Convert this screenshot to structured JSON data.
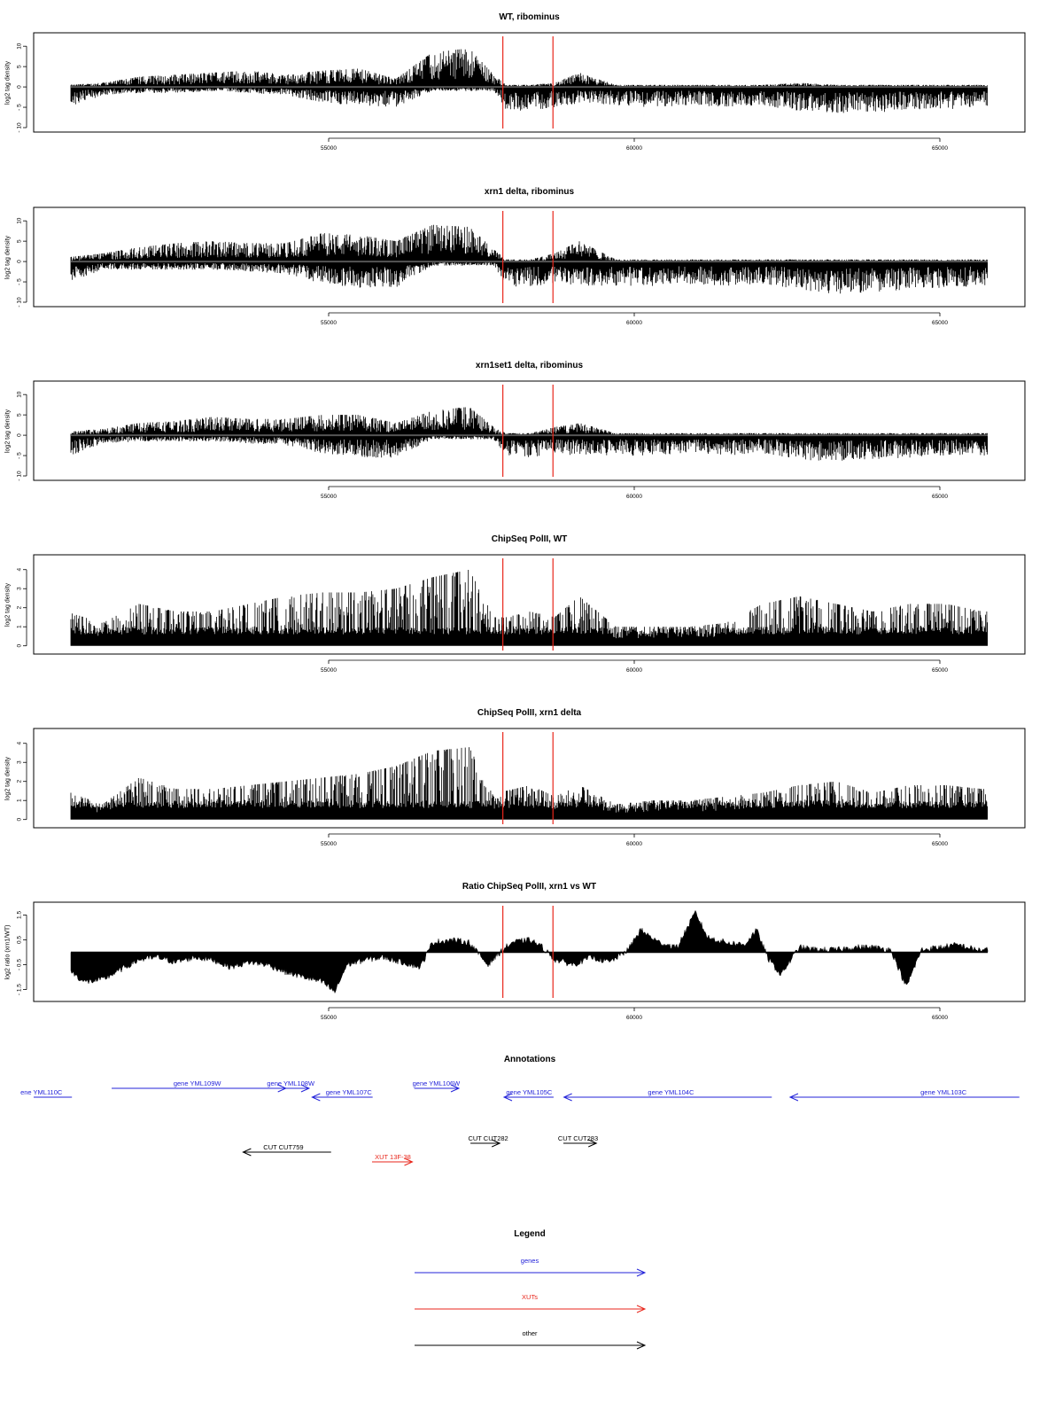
{
  "chart_data": [
    {
      "type": "bar",
      "title": "WT, ribominus",
      "ylabel": "log2 tag density",
      "ylim": [
        -10,
        12
      ],
      "yticks": [
        10,
        5,
        0,
        -5,
        -10
      ],
      "xlim": [
        50000,
        65900
      ],
      "xticks": [
        55000,
        60000,
        65000
      ],
      "zero_line": true,
      "markers": [
        57850,
        58670
      ],
      "marker_color": "#e8261b",
      "density": {
        "x": [
          50700,
          51300,
          51900,
          52500,
          53100,
          53700,
          54300,
          54900,
          55500,
          56100,
          56700,
          57300,
          57700,
          57900,
          58300,
          58700,
          59100,
          59700,
          60300,
          60900,
          61500,
          62100,
          62700,
          63300,
          63900,
          64500,
          65100,
          65700
        ],
        "upper": [
          0.5,
          1,
          2.5,
          3,
          3.5,
          4,
          3,
          4,
          4.5,
          2,
          8.5,
          9.5,
          3,
          0.5,
          0.5,
          1,
          3.5,
          0.5,
          0.5,
          0.5,
          0.5,
          0.5,
          1,
          0.5,
          0.5,
          0.5,
          0.5,
          0.5
        ],
        "lower": [
          -5.5,
          -2,
          -1.5,
          -1.5,
          -1,
          -1.5,
          -2,
          -4,
          -4.5,
          -5,
          -1,
          -1,
          -1,
          -5.5,
          -6,
          -5,
          -4,
          -4.5,
          -5,
          -4.5,
          -5,
          -4.5,
          -6,
          -6.5,
          -6.5,
          -5.5,
          -5.5,
          -5
        ]
      }
    },
    {
      "type": "bar",
      "title": "xrn1 delta, ribominus",
      "ylabel": "log2 tag density",
      "ylim": [
        -10,
        12
      ],
      "yticks": [
        10,
        5,
        0,
        -5,
        -10
      ],
      "xlim": [
        50000,
        65900
      ],
      "xticks": [
        55000,
        60000,
        65000
      ],
      "zero_line": true,
      "markers": [
        57850,
        58670
      ],
      "marker_color": "#e8261b",
      "density": {
        "x": [
          50700,
          51300,
          51900,
          52500,
          53100,
          53700,
          54300,
          54900,
          55500,
          56100,
          56700,
          57300,
          57700,
          57900,
          58300,
          58700,
          59100,
          59700,
          60300,
          60900,
          61500,
          62100,
          62700,
          63300,
          63900,
          64500,
          65100,
          65700
        ],
        "upper": [
          1,
          2,
          3.5,
          4.5,
          5,
          4.5,
          4.5,
          7,
          6.5,
          5,
          9,
          8.5,
          3,
          0.5,
          0.5,
          2,
          5,
          0.5,
          0.5,
          0.5,
          0.5,
          0.5,
          0.5,
          0.5,
          0.5,
          0.5,
          0.5,
          0.5
        ],
        "lower": [
          -5.5,
          -2,
          -2,
          -2,
          -2,
          -2.5,
          -3,
          -5.5,
          -6.5,
          -6.5,
          -1,
          -1,
          -1,
          -6,
          -6.5,
          -5.5,
          -6,
          -6,
          -6,
          -5.5,
          -6,
          -5.5,
          -7,
          -8,
          -7.5,
          -7,
          -6.5,
          -6
        ]
      }
    },
    {
      "type": "bar",
      "title": "xrn1set1 delta, ribominus",
      "ylabel": "log2 tag density",
      "ylim": [
        -10,
        12
      ],
      "yticks": [
        10,
        5,
        0,
        -5,
        -10
      ],
      "xlim": [
        50000,
        65900
      ],
      "xticks": [
        55000,
        60000,
        65000
      ],
      "zero_line": true,
      "markers": [
        57850,
        58670
      ],
      "marker_color": "#e8261b",
      "density": {
        "x": [
          50700,
          51300,
          51900,
          52500,
          53100,
          53700,
          54300,
          54900,
          55500,
          56100,
          56700,
          57300,
          57700,
          57900,
          58300,
          58700,
          59100,
          59700,
          60300,
          60900,
          61500,
          62100,
          62700,
          63300,
          63900,
          64500,
          65100,
          65700
        ],
        "upper": [
          1,
          1.5,
          3,
          3.5,
          4.5,
          4,
          4,
          5,
          5,
          3,
          6,
          7,
          2,
          0.5,
          0.5,
          2,
          3,
          0.5,
          0.5,
          0.5,
          0.5,
          0.5,
          0.5,
          0.5,
          0.5,
          0.5,
          0.5,
          0.5
        ],
        "lower": [
          -5.5,
          -2,
          -1.5,
          -1.5,
          -1.5,
          -2,
          -2.5,
          -4.5,
          -5.5,
          -5.5,
          -1,
          -1,
          -1,
          -5,
          -5.5,
          -5,
          -5,
          -5,
          -5,
          -4.5,
          -5,
          -4.5,
          -6,
          -6.5,
          -6,
          -5.5,
          -5,
          -5
        ]
      }
    },
    {
      "type": "bar",
      "title": "ChipSeq PolII, WT",
      "ylabel": "log2 tag density",
      "ylim": [
        -0.2,
        4.5
      ],
      "yticks": [
        4,
        3,
        2,
        1,
        0
      ],
      "xlim": [
        50000,
        65900
      ],
      "xticks": [
        55000,
        60000,
        65000
      ],
      "zero_line": false,
      "markers": [
        57850,
        58670
      ],
      "marker_color": "#e8261b",
      "density": {
        "x": [
          50700,
          51300,
          51900,
          52500,
          53100,
          53700,
          54300,
          54900,
          55500,
          56100,
          56700,
          57300,
          57700,
          57900,
          58300,
          58700,
          59100,
          59700,
          60300,
          60900,
          61500,
          62100,
          62700,
          63300,
          63900,
          64500,
          65100,
          65700
        ],
        "upper": [
          1.8,
          1.2,
          2.2,
          1.8,
          1.8,
          2.2,
          2.6,
          2.8,
          2.8,
          3,
          3.6,
          4,
          1.5,
          1.5,
          1.8,
          1.5,
          2.6,
          1,
          1,
          1,
          1.2,
          2.2,
          2.6,
          2.2,
          1.8,
          2.2,
          2.2,
          1.8
        ],
        "lower": [
          0,
          0,
          0,
          0,
          0,
          0,
          0,
          0,
          0,
          0,
          0,
          0,
          0,
          0,
          0,
          0,
          0,
          0,
          0,
          0,
          0,
          0,
          0,
          0,
          0,
          0,
          0,
          0
        ]
      }
    },
    {
      "type": "bar",
      "title": "ChipSeq PolII, xrn1 delta",
      "ylabel": "log2 tag density",
      "ylim": [
        -0.2,
        4.5
      ],
      "yticks": [
        4,
        3,
        2,
        1,
        0
      ],
      "xlim": [
        50000,
        65900
      ],
      "xticks": [
        55000,
        60000,
        65000
      ],
      "zero_line": false,
      "markers": [
        57850,
        58670
      ],
      "marker_color": "#e8261b",
      "density": {
        "x": [
          50700,
          51300,
          51900,
          52500,
          53100,
          53700,
          54300,
          54900,
          55500,
          56100,
          56700,
          57300,
          57700,
          57900,
          58300,
          58700,
          59100,
          59700,
          60300,
          60900,
          61500,
          62100,
          62700,
          63300,
          63900,
          64500,
          65100,
          65700
        ],
        "upper": [
          1.5,
          0.8,
          2.2,
          1.6,
          1.6,
          1.8,
          2,
          2.2,
          2.4,
          2.8,
          3.6,
          3.8,
          1.2,
          1.5,
          1.8,
          1.2,
          1.8,
          0.8,
          1,
          1,
          1.2,
          1.4,
          1.8,
          2,
          1.4,
          1.8,
          1.8,
          1.6
        ],
        "lower": [
          0,
          0,
          0,
          0,
          0,
          0,
          0,
          0,
          0,
          0,
          0,
          0,
          0,
          0,
          0,
          0,
          0,
          0,
          0,
          0,
          0,
          0,
          0,
          0,
          0,
          0,
          0,
          0
        ]
      }
    },
    {
      "type": "area",
      "title": "Ratio ChipSeq PolII, xrn1 vs WT",
      "ylabel": "log2 ratio (xrn1/WT)",
      "ylim": [
        -1.8,
        1.8
      ],
      "yticks": [
        1.5,
        0.5,
        -0.5,
        -1.5
      ],
      "xlim": [
        50000,
        65900
      ],
      "xticks": [
        55000,
        60000,
        65000
      ],
      "zero_line": false,
      "markers": [
        57850,
        58670
      ],
      "marker_color": "#e8261b",
      "x": [
        50550,
        50700,
        51000,
        51300,
        51600,
        51900,
        52200,
        52500,
        52800,
        53100,
        53400,
        53700,
        54000,
        54300,
        54600,
        54900,
        55100,
        55300,
        55600,
        55900,
        56200,
        56500,
        56700,
        57000,
        57300,
        57600,
        57850,
        58000,
        58300,
        58500,
        58700,
        59000,
        59300,
        59600,
        59900,
        60100,
        60400,
        60700,
        61000,
        61200,
        61500,
        61800,
        62000,
        62200,
        62400,
        62700,
        63000,
        63300,
        63600,
        63900,
        64200,
        64450,
        64700,
        65000,
        65300,
        65600
      ],
      "y": [
        0.2,
        -0.6,
        -1.2,
        -1.1,
        -0.7,
        -0.3,
        -0.2,
        -0.4,
        -0.2,
        -0.3,
        -0.6,
        -0.4,
        -0.5,
        -0.8,
        -1,
        -1.2,
        -1.6,
        -0.5,
        -0.3,
        -0.2,
        -0.4,
        -0.6,
        0.4,
        0.5,
        0.4,
        -0.5,
        0.1,
        0.4,
        0.5,
        0.2,
        -0.3,
        -0.5,
        -0.2,
        -0.4,
        0.1,
        0.9,
        0.4,
        0.2,
        1.6,
        0.6,
        0.4,
        0.3,
        0.9,
        -0.3,
        -0.9,
        0.2,
        0.1,
        0.1,
        0.2,
        0.2,
        0.1,
        -1.4,
        0.1,
        0.2,
        0.3,
        0.1
      ]
    }
  ],
  "annotations": {
    "title": "Annotations",
    "xlim": [
      50000,
      65900
    ],
    "features": [
      {
        "label": "ene YML110C",
        "start": 50000,
        "end": 50800,
        "strand": "-",
        "arrow": false,
        "color": "#2323d9",
        "row": 1,
        "label_x": 50300
      },
      {
        "label": "gene YML109W",
        "start": 51450,
        "end": 54300,
        "strand": "+",
        "color": "#2323d9",
        "row": 0,
        "label_x": 52850
      },
      {
        "label": "gene YML108W",
        "start": 54300,
        "end": 54680,
        "strand": "+",
        "color": "#2323d9",
        "row": 0,
        "label_x": 54380
      },
      {
        "label": "gene YML107C",
        "start": 54730,
        "end": 55720,
        "strand": "-",
        "color": "#2323d9",
        "row": 1,
        "label_x": 55330
      },
      {
        "label": "gene YML106W",
        "start": 56400,
        "end": 57130,
        "strand": "+",
        "color": "#2323d9",
        "row": 0,
        "label_x": 56760
      },
      {
        "label": "gene YML105C",
        "start": 57870,
        "end": 58680,
        "strand": "-",
        "color": "#2323d9",
        "row": 1,
        "label_x": 58280
      },
      {
        "label": "gene YML104C",
        "start": 58850,
        "end": 62250,
        "strand": "-",
        "color": "#2323d9",
        "row": 1,
        "label_x": 60600
      },
      {
        "label": "gene YML103C",
        "start": 62550,
        "end": 66300,
        "strand": "-",
        "color": "#2323d9",
        "row": 1,
        "label_x": 65060
      },
      {
        "label": "CUT CUT759",
        "start": 53600,
        "end": 55040,
        "strand": "-",
        "color": "#000000",
        "row": 3,
        "label_x": 54260
      },
      {
        "label": "XUT 13F-38",
        "start": 55710,
        "end": 56370,
        "strand": "+",
        "color": "#e8261b",
        "row": 4,
        "label_x": 56050
      },
      {
        "label": "CUT CUT282",
        "start": 57320,
        "end": 57800,
        "strand": "+",
        "color": "#000000",
        "row": 2,
        "label_x": 57610
      },
      {
        "label": "CUT CUT283",
        "start": 58840,
        "end": 59380,
        "strand": "+",
        "color": "#000000",
        "row": 2,
        "label_x": 59080
      }
    ]
  },
  "legend": {
    "title": "Legend",
    "items": [
      {
        "label": "genes",
        "color": "#2323d9"
      },
      {
        "label": "XUTs",
        "color": "#e8261b"
      },
      {
        "label": "other",
        "color": "#000000"
      }
    ]
  }
}
